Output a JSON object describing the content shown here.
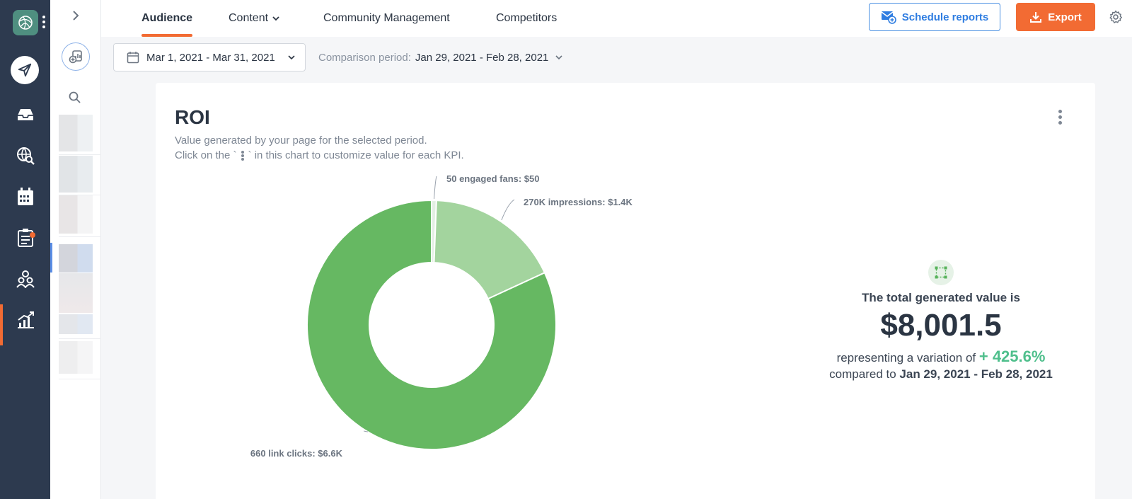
{
  "nav": {
    "tabs": [
      {
        "label": "Audience",
        "active": true
      },
      {
        "label": "Content",
        "active": false
      },
      {
        "label": "Community Management",
        "active": false
      },
      {
        "label": "Competitors",
        "active": false
      }
    ],
    "schedule_label": "Schedule reports",
    "export_label": "Export"
  },
  "filters": {
    "date_range": "Mar 1, 2021 - Mar 31, 2021",
    "comparison_label": "Comparison period:",
    "comparison_range": "Jan 29, 2021 - Feb 28, 2021"
  },
  "card": {
    "title": "ROI",
    "description_1": "Value generated by your page for the selected period.",
    "description_2_before": "Click on the `",
    "description_2_after": "` in this chart to customize value for each KPI."
  },
  "chart_data": {
    "type": "pie",
    "style": "donut",
    "slices": [
      {
        "label": "50 engaged fans: $50",
        "value": 50,
        "color": "#e3efe3"
      },
      {
        "label": "270K impressions: $1.4K",
        "value": 1400,
        "color": "#a3d49e"
      },
      {
        "label": "660 link clicks: $6.6K",
        "value": 6551.5,
        "color": "#66b862"
      }
    ]
  },
  "total": {
    "headline": "The total generated value is",
    "value": "$8,001.5",
    "variation_prefix": "representing a variation of",
    "variation_pct": "+ 425.6%",
    "compared_prefix": "compared to",
    "compared_range": "Jan 29, 2021 - Feb 28, 2021"
  },
  "colors": {
    "accent": "#f26b33",
    "sidebar": "#2d3a4f",
    "link": "#2f7de1",
    "positive": "#4fbf8c"
  }
}
